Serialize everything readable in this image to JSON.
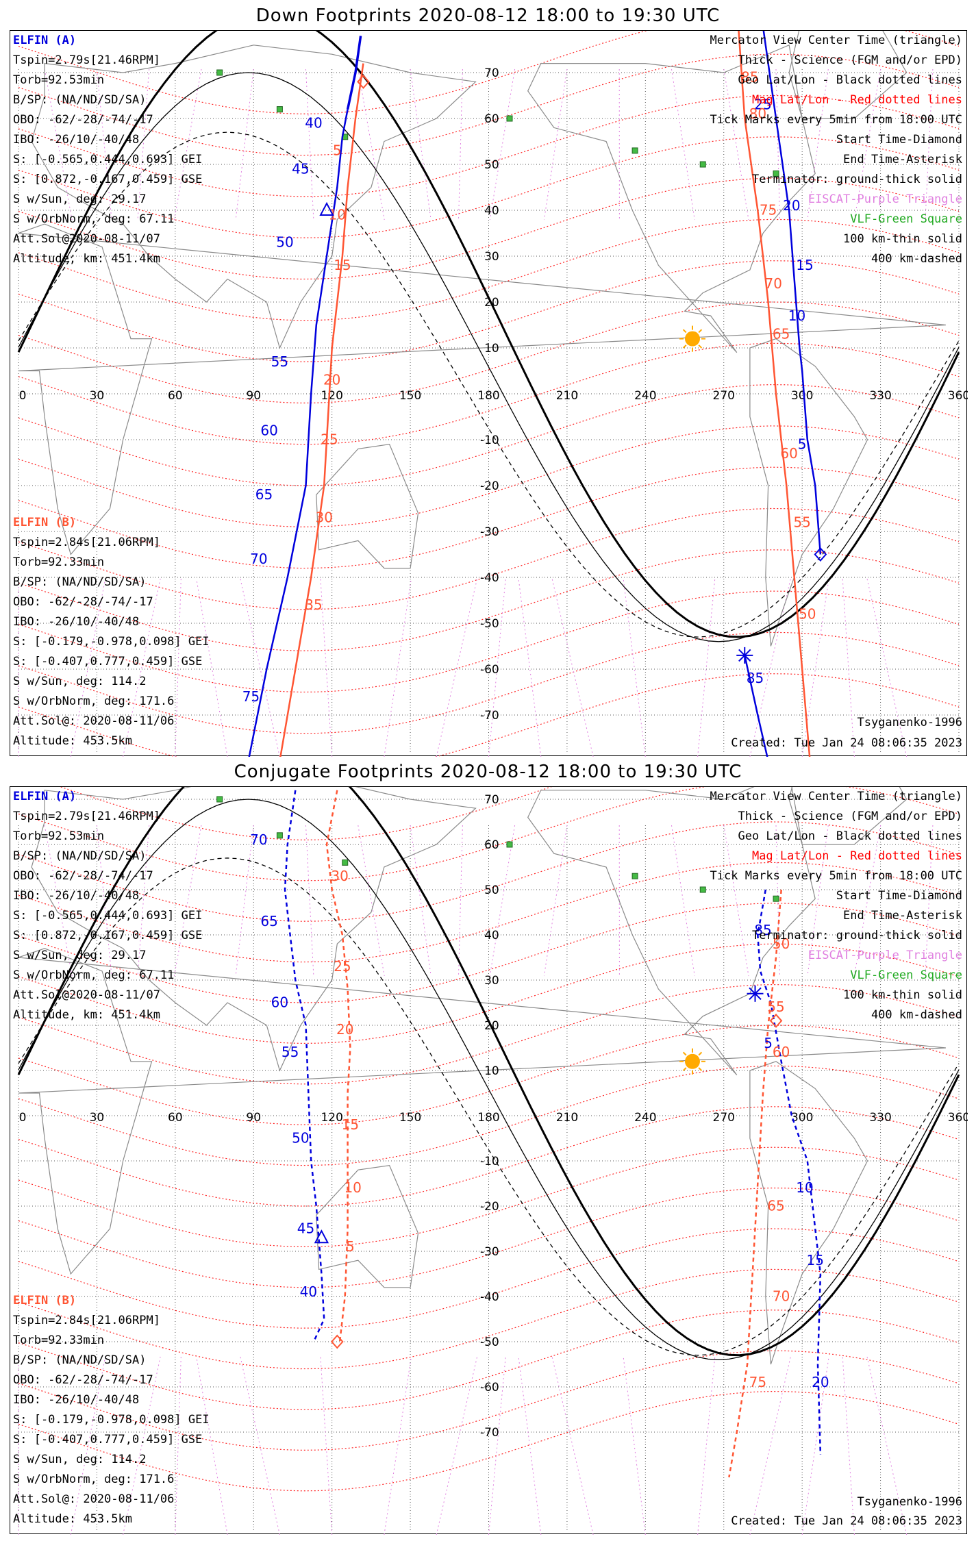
{
  "panels": [
    {
      "id": "down",
      "title": "Down Footprints 2020-08-12 18:00 to 19:30 UTC",
      "elfin_a": {
        "name": "ELFIN (A)",
        "lines": [
          "Tspin=2.79s[21.46RPM]",
          "Torb=92.53min",
          "B/SP: (NA/ND/SD/SA)",
          "OBO: -62/-28/-74/-17",
          "IBO: -26/10/-40/48",
          "S: [-0.565,0.444,0.693] GEI",
          "S: [0.872,-0.167,0.459] GSE",
          "S w/Sun, deg: 29.17",
          "S w/OrbNorm, deg: 67.11",
          "Att.Sol@2020-08-11/07",
          "Altitude, km: 451.4km"
        ]
      },
      "elfin_b": {
        "name": "ELFIN (B)",
        "lines": [
          "Tspin=2.84s[21.06RPM]",
          "Torb=92.33min",
          "B/SP: (NA/ND/SD/SA)",
          "OBO: -62/-28/-74/-17",
          "IBO: -26/10/-40/48",
          "S: [-0.179,-0.978,0.098] GEI",
          "S: [-0.407,0.777,0.459] GSE",
          "S w/Sun, deg: 114.2",
          "S w/OrbNorm, deg: 171.6",
          "Att.Sol@: 2020-08-11/06",
          "Altitude: 453.5km"
        ]
      },
      "legend": [
        "Mercator View Center Time (triangle)",
        "Thick - Science (FGM and/or EPD)",
        "Geo Lat/Lon - Black dotted lines",
        "Mag Lat/Lon - Red dotted lines",
        "Tick Marks every 5min from 18:00 UTC",
        "Start Time-Diamond",
        "End Time-Asterisk",
        "Terminator: ground-thick solid",
        "EISCAT-Purple Triangle",
        "VLF-Green Square",
        "100 km-thin solid",
        "400 km-dashed"
      ],
      "model": "Tsyganenko-1996",
      "created": "Created: Tue Jan 24 08:06:35 2023",
      "track_a_labels": [
        "40",
        "45",
        "50",
        "55",
        "60",
        "65",
        "70",
        "75",
        "85",
        "5",
        "10",
        "15",
        "20",
        "25"
      ],
      "track_b_labels": [
        "5",
        "10",
        "15",
        "20",
        "25",
        "30",
        "35",
        "85",
        "80",
        "75",
        "70",
        "65",
        "60",
        "55",
        "50"
      ]
    },
    {
      "id": "conj",
      "title": "Conjugate Footprints 2020-08-12 18:00 to 19:30 UTC",
      "elfin_a": {
        "name": "ELFIN (A)",
        "lines": [
          "Tspin=2.79s[21.46RPM]",
          "Torb=92.53min",
          "B/SP: (NA/ND/SD/SA)",
          "OBO: -62/-28/-74/-17",
          "IBO: -26/10/-40/48",
          "S: [-0.565,0.444,0.693] GEI",
          "S: [0.872,-0.167,0.459] GSE",
          "S w/Sun, deg: 29.17",
          "S w/OrbNorm, deg: 67.11",
          "Att.Sol@2020-08-11/07",
          "Altitude, km: 451.4km"
        ]
      },
      "elfin_b": {
        "name": "ELFIN (B)",
        "lines": [
          "Tspin=2.84s[21.06RPM]",
          "Torb=92.33min",
          "B/SP: (NA/ND/SD/SA)",
          "OBO: -62/-28/-74/-17",
          "IBO: -26/10/-40/48",
          "S: [-0.179,-0.978,0.098] GEI",
          "S: [-0.407,0.777,0.459] GSE",
          "S w/Sun, deg: 114.2",
          "S w/OrbNorm, deg: 171.6",
          "Att.Sol@: 2020-08-11/06",
          "Altitude: 453.5km"
        ]
      },
      "legend": [
        "Mercator View Center Time (triangle)",
        "Thick - Science (FGM and/or EPD)",
        "Geo Lat/Lon - Black dotted lines",
        "Mag Lat/Lon - Red dotted lines",
        "Tick Marks every 5min from 18:00 UTC",
        "Start Time-Diamond",
        "End Time-Asterisk",
        "Terminator: ground-thick solid",
        "EISCAT-Purple Triangle",
        "VLF-Green Square",
        "100 km-thin solid",
        "400 km-dashed"
      ],
      "model": "Tsyganenko-1996",
      "created": "Created: Tue Jan 24 08:06:35 2023",
      "track_a_labels": [
        "70",
        "65",
        "60",
        "55",
        "50",
        "45",
        "40",
        "85",
        "5",
        "10",
        "15",
        "20"
      ],
      "track_b_labels": [
        "30",
        "25",
        "20",
        "15",
        "10",
        "5",
        "50",
        "55",
        "60",
        "65",
        "70",
        "75"
      ]
    }
  ],
  "axes": {
    "lon_ticks": [
      "0",
      "30",
      "60",
      "90",
      "120",
      "150",
      "180",
      "210",
      "240",
      "270",
      "300",
      "330",
      "360"
    ],
    "lat_ticks": [
      "70",
      "60",
      "50",
      "40",
      "30",
      "20",
      "10",
      "-10",
      "-20",
      "-30",
      "-40",
      "-50",
      "-60",
      "-70"
    ]
  },
  "colors": {
    "elfin_a": "#0000dd",
    "elfin_b": "#ff5533",
    "mag_grid": "#ff0000",
    "eiscat": "#e080e0",
    "vlf": "#22aa22",
    "sun": "#ffaa00"
  }
}
